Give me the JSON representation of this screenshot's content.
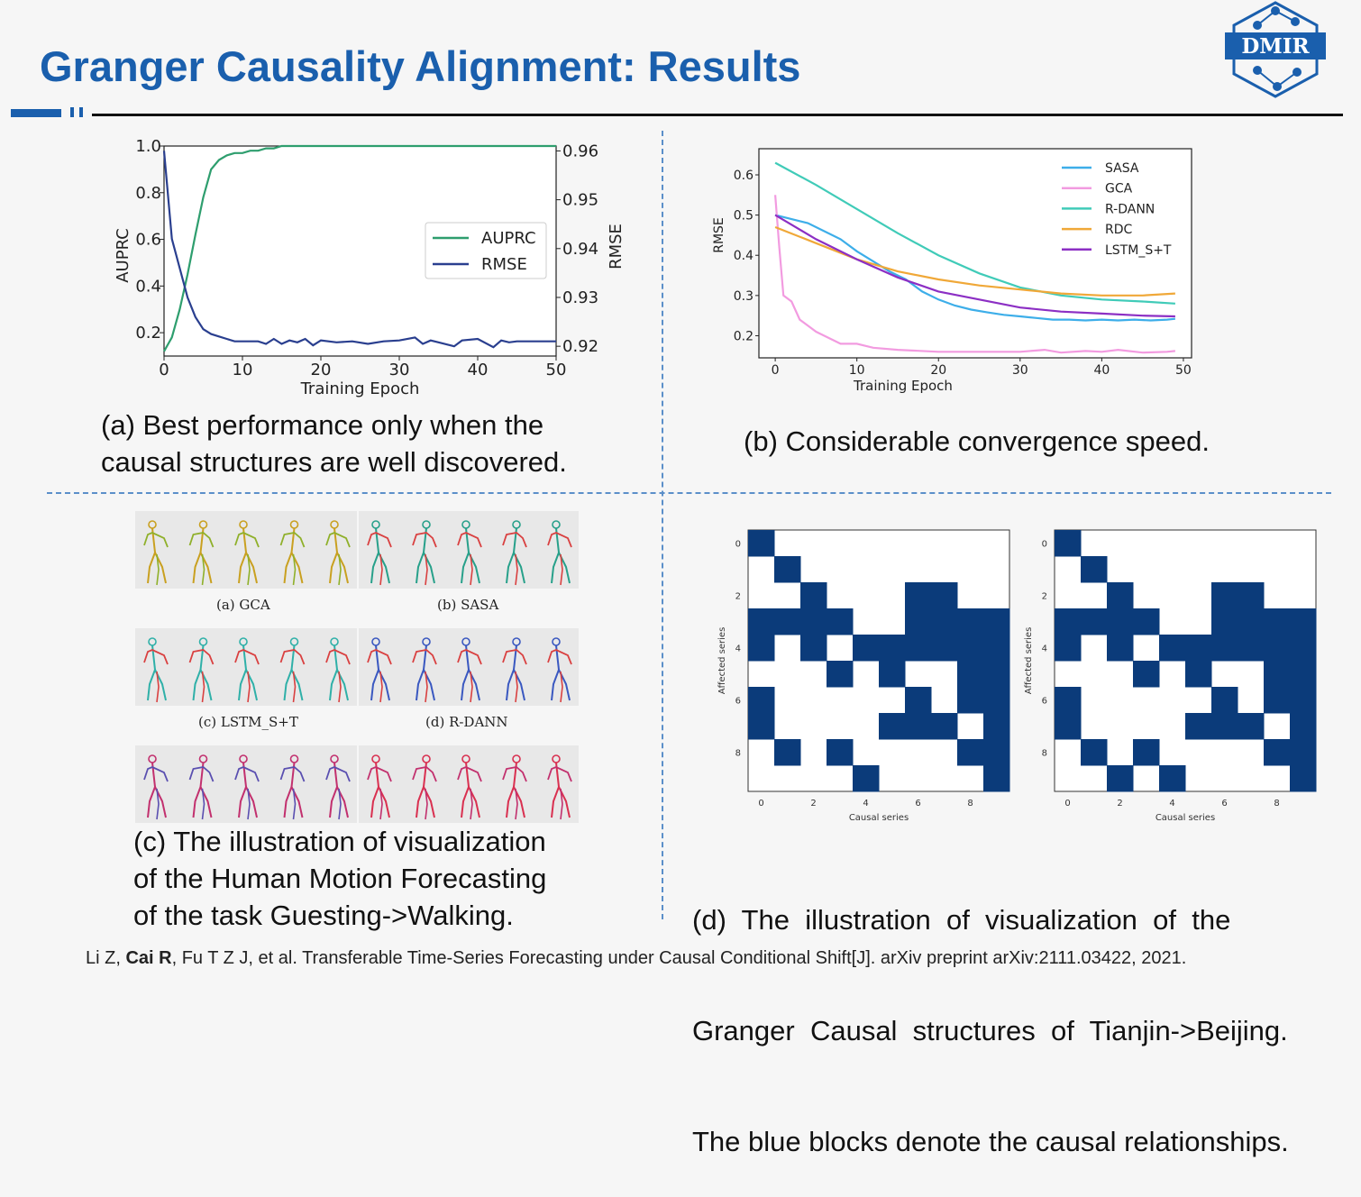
{
  "slide": {
    "title": "Granger Causality Alignment: Results",
    "logo_text": "DMIR",
    "citation": {
      "before": "Li Z, ",
      "bold": "Cai R",
      "after": ", Fu T Z J, et al. Transferable Time-Series Forecasting under Causal Conditional Shift[J]. arXiv preprint arXiv:2111.03422, 2021."
    },
    "accent_color": "#1a5fad"
  },
  "captions": {
    "a": [
      "(a) Best performance only when the",
      "causal structures are well discovered."
    ],
    "b": "(b) Considerable convergence speed.",
    "c": [
      "(c) The illustration of visualization",
      "of the Human Motion Forecasting",
      "of the task Guesting->Walking."
    ],
    "d": [
      "(d)  The  illustration  of  visualization  of  the",
      "Granger  Causal  structures  of  Tianjin->Beijing.",
      "The blue blocks denote the causal relationships."
    ]
  },
  "motion_labels": [
    "(a) GCA",
    "(b) SASA",
    "(c) LSTM_S+T",
    "(d) R-DANN"
  ],
  "chart_data": [
    {
      "type": "line",
      "xlabel": "Training Epoch",
      "ylabel": "AUPRC",
      "y2label": "RMSE",
      "xlim": [
        0,
        50
      ],
      "ylim": [
        0.1,
        1.0
      ],
      "y2lim": [
        0.918,
        0.961
      ],
      "xticks": [
        0,
        10,
        20,
        30,
        40,
        50
      ],
      "yticks": [
        0.2,
        0.4,
        0.6,
        0.8,
        1.0
      ],
      "y2ticks": [
        0.92,
        0.93,
        0.94,
        0.95,
        0.96
      ],
      "legend_position": "center-right",
      "series": [
        {
          "name": "AUPRC",
          "axis": "left",
          "color": "#2e9e6e",
          "x": [
            0,
            1,
            2,
            3,
            4,
            5,
            6,
            7,
            8,
            9,
            10,
            11,
            12,
            13,
            14,
            15,
            20,
            25,
            30,
            35,
            40,
            45,
            50
          ],
          "y": [
            0.12,
            0.18,
            0.3,
            0.45,
            0.62,
            0.78,
            0.9,
            0.94,
            0.96,
            0.97,
            0.97,
            0.98,
            0.98,
            0.99,
            0.99,
            1.0,
            1.0,
            1.0,
            1.0,
            1.0,
            1.0,
            1.0,
            1.0
          ]
        },
        {
          "name": "RMSE",
          "axis": "right",
          "color": "#2a3f8f",
          "x": [
            0,
            1,
            2,
            3,
            4,
            5,
            6,
            7,
            8,
            9,
            10,
            12,
            13,
            14,
            15,
            16,
            17,
            18,
            19,
            20,
            22,
            24,
            26,
            28,
            30,
            32,
            33,
            34,
            35,
            37,
            38,
            40,
            42,
            43,
            44,
            45,
            50
          ],
          "y": [
            0.96,
            0.942,
            0.936,
            0.93,
            0.926,
            0.9235,
            0.9225,
            0.922,
            0.9215,
            0.921,
            0.921,
            0.921,
            0.9205,
            0.9215,
            0.9205,
            0.9212,
            0.9208,
            0.9215,
            0.9202,
            0.9212,
            0.9208,
            0.921,
            0.9205,
            0.921,
            0.9212,
            0.9218,
            0.9205,
            0.9212,
            0.9208,
            0.92,
            0.9212,
            0.9215,
            0.9198,
            0.9212,
            0.9208,
            0.921,
            0.921
          ]
        }
      ]
    },
    {
      "type": "line",
      "xlabel": "Training Epoch",
      "ylabel": "RMSE",
      "xlim": [
        -2,
        51
      ],
      "ylim": [
        0.145,
        0.665
      ],
      "xticks": [
        0,
        10,
        20,
        30,
        40,
        50
      ],
      "yticks": [
        0.2,
        0.3,
        0.4,
        0.5,
        0.6
      ],
      "legend_position": "top-right",
      "series": [
        {
          "name": "SASA",
          "color": "#3daee9",
          "x": [
            0,
            2,
            4,
            6,
            8,
            10,
            12,
            14,
            16,
            18,
            20,
            22,
            24,
            26,
            28,
            30,
            32,
            34,
            36,
            38,
            40,
            42,
            44,
            46,
            48,
            49
          ],
          "y": [
            0.5,
            0.49,
            0.48,
            0.46,
            0.44,
            0.41,
            0.385,
            0.36,
            0.34,
            0.31,
            0.29,
            0.275,
            0.265,
            0.258,
            0.252,
            0.248,
            0.244,
            0.24,
            0.24,
            0.238,
            0.24,
            0.238,
            0.24,
            0.238,
            0.24,
            0.242
          ]
        },
        {
          "name": "GCA",
          "color": "#f29be0",
          "x": [
            0,
            0.5,
            1,
            2,
            3,
            4,
            5,
            6,
            8,
            10,
            12,
            15,
            20,
            25,
            30,
            33,
            35,
            38,
            40,
            42,
            45,
            48,
            49
          ],
          "y": [
            0.55,
            0.42,
            0.3,
            0.285,
            0.24,
            0.225,
            0.21,
            0.2,
            0.18,
            0.18,
            0.17,
            0.165,
            0.16,
            0.16,
            0.16,
            0.165,
            0.158,
            0.162,
            0.16,
            0.165,
            0.158,
            0.16,
            0.162
          ]
        },
        {
          "name": "R-DANN",
          "color": "#40cbb8",
          "x": [
            0,
            5,
            10,
            15,
            20,
            25,
            30,
            35,
            40,
            45,
            49
          ],
          "y": [
            0.63,
            0.575,
            0.515,
            0.455,
            0.4,
            0.355,
            0.32,
            0.3,
            0.29,
            0.285,
            0.28
          ]
        },
        {
          "name": "RDC",
          "color": "#f0a838",
          "x": [
            0,
            5,
            10,
            15,
            20,
            25,
            30,
            35,
            40,
            45,
            49
          ],
          "y": [
            0.47,
            0.43,
            0.39,
            0.36,
            0.34,
            0.325,
            0.315,
            0.305,
            0.3,
            0.3,
            0.305
          ]
        },
        {
          "name": "LSTM_S+T",
          "color": "#8c2fc4",
          "x": [
            0,
            5,
            10,
            15,
            20,
            25,
            30,
            35,
            40,
            45,
            49
          ],
          "y": [
            0.5,
            0.44,
            0.39,
            0.345,
            0.31,
            0.29,
            0.27,
            0.26,
            0.255,
            0.25,
            0.248
          ]
        }
      ]
    },
    {
      "type": "heatmap",
      "xlabel": "Causal series",
      "ylabel": "Affected series",
      "ticks": [
        0,
        2,
        4,
        6,
        8
      ],
      "colors": {
        "one": "#0b3b7a",
        "zero": "#ffffff"
      },
      "matrix": [
        [
          1,
          0,
          0,
          0,
          0,
          0,
          0,
          0,
          0,
          0
        ],
        [
          0,
          1,
          0,
          0,
          0,
          0,
          0,
          0,
          0,
          0
        ],
        [
          0,
          0,
          1,
          0,
          0,
          0,
          1,
          1,
          0,
          0
        ],
        [
          1,
          1,
          1,
          1,
          0,
          0,
          1,
          1,
          1,
          1
        ],
        [
          1,
          0,
          1,
          0,
          1,
          1,
          1,
          1,
          1,
          1
        ],
        [
          0,
          0,
          0,
          1,
          0,
          1,
          0,
          0,
          1,
          1
        ],
        [
          1,
          0,
          0,
          0,
          0,
          0,
          1,
          0,
          1,
          1
        ],
        [
          1,
          0,
          0,
          0,
          0,
          1,
          1,
          1,
          0,
          1
        ],
        [
          0,
          1,
          0,
          1,
          0,
          0,
          0,
          0,
          1,
          1
        ],
        [
          0,
          0,
          0,
          0,
          1,
          0,
          0,
          0,
          0,
          1
        ]
      ]
    },
    {
      "type": "heatmap",
      "xlabel": "Causal series",
      "ylabel": "Affected series",
      "ticks": [
        0,
        2,
        4,
        6,
        8
      ],
      "colors": {
        "one": "#0b3b7a",
        "zero": "#ffffff"
      },
      "matrix": [
        [
          1,
          0,
          0,
          0,
          0,
          0,
          0,
          0,
          0,
          0
        ],
        [
          0,
          1,
          0,
          0,
          0,
          0,
          0,
          0,
          0,
          0
        ],
        [
          0,
          0,
          1,
          0,
          0,
          0,
          1,
          1,
          0,
          0
        ],
        [
          1,
          1,
          1,
          1,
          0,
          0,
          1,
          1,
          1,
          1
        ],
        [
          1,
          0,
          1,
          0,
          1,
          1,
          1,
          1,
          1,
          1
        ],
        [
          0,
          0,
          0,
          1,
          0,
          1,
          0,
          0,
          1,
          1
        ],
        [
          1,
          0,
          0,
          0,
          0,
          0,
          1,
          0,
          1,
          1
        ],
        [
          1,
          0,
          0,
          0,
          0,
          1,
          1,
          1,
          0,
          1
        ],
        [
          0,
          1,
          0,
          1,
          0,
          0,
          0,
          0,
          1,
          1
        ],
        [
          0,
          0,
          1,
          0,
          1,
          0,
          0,
          0,
          0,
          1
        ]
      ]
    }
  ]
}
